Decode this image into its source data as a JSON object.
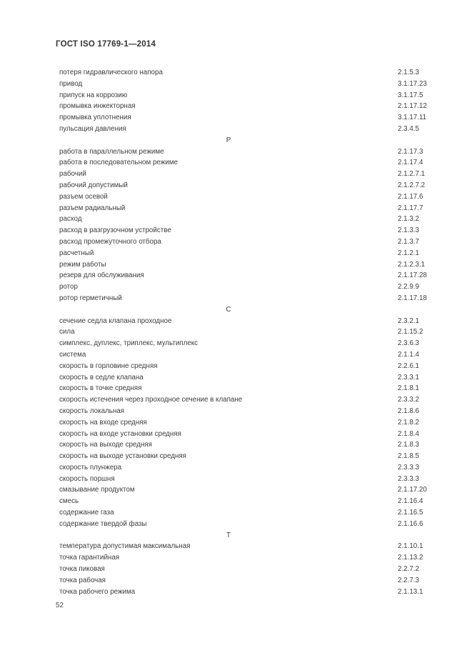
{
  "page": {
    "header_title": "ГОСТ ISO 17769-1—2014",
    "page_number": "52"
  },
  "index": {
    "sections": [
      {
        "letter": "",
        "entries": [
          {
            "term": "потеря гидравлического напора",
            "ref": "2.1.5.3"
          },
          {
            "term": "привод",
            "ref": "3.1.17.23"
          },
          {
            "term": "припуск на коррозию",
            "ref": "3.1.17.5"
          },
          {
            "term": "промывка инжекторная",
            "ref": "2.1.17.12"
          },
          {
            "term": "промывка уплотнения",
            "ref": "3.1.17.11"
          },
          {
            "term": "пульсация давления",
            "ref": "2.3.4.5"
          }
        ]
      },
      {
        "letter": "Р",
        "entries": [
          {
            "term": "работа в параллельном режиме",
            "ref": "2.1.17.3"
          },
          {
            "term": "работа в последовательном режиме",
            "ref": "2.1.17.4"
          },
          {
            "term": "рабочий",
            "ref": "2.1.2.7.1"
          },
          {
            "term": "рабочий допустимый",
            "ref": "2.1.2.7.2"
          },
          {
            "term": "разъем осевой",
            "ref": "2.1.17.6"
          },
          {
            "term": "разъем радиальный",
            "ref": "2.1.17.7"
          },
          {
            "term": "расход",
            "ref": "2.1.3.2"
          },
          {
            "term": "расход в разгрузочном устройстве",
            "ref": "2.1.3.3"
          },
          {
            "term": "расход промежуточного отбора",
            "ref": "2.1.3.7"
          },
          {
            "term": "расчетный",
            "ref": "2.1.2.1"
          },
          {
            "term": "режим работы",
            "ref": "2.1.2.3.1"
          },
          {
            "term": "резерв для обслуживания",
            "ref": "2.1.17.28"
          },
          {
            "term": "ротор",
            "ref": "2.2.9.9"
          },
          {
            "term": "ротор герметичный",
            "ref": "2.1.17.18"
          }
        ]
      },
      {
        "letter": "С",
        "entries": [
          {
            "term": "сечение седла клапана проходное",
            "ref": "2.3.2.1"
          },
          {
            "term": "сила",
            "ref": "2.1.15.2"
          },
          {
            "term": "симплекс, дуплекс, триплекс, мультиплекс",
            "ref": "2.3.6.3"
          },
          {
            "term": "система",
            "ref": "2.1.1.4"
          },
          {
            "term": "скорость в горловине средняя",
            "ref": "2.2.6.1"
          },
          {
            "term": "скорость в седле клапана",
            "ref": "2.3.3.1"
          },
          {
            "term": "скорость в точке средняя",
            "ref": "2.1.8.1"
          },
          {
            "term": "скорость истечения через проходное сечение в клапане",
            "ref": "2.3.3.2"
          },
          {
            "term": "скорость локальная",
            "ref": "2.1.8.6"
          },
          {
            "term": "скорость на входе средняя",
            "ref": "2.1.8.2"
          },
          {
            "term": "скорость на входе установки средняя",
            "ref": "2.1.8.4"
          },
          {
            "term": "скорость на выходе средняя",
            "ref": "2.1.8.3"
          },
          {
            "term": "скорость на выходе установки средняя",
            "ref": "2.1.8.5"
          },
          {
            "term": "скорость плунжера",
            "ref": "2.3.3.3"
          },
          {
            "term": "скорость поршня",
            "ref": "2.3.3.3"
          },
          {
            "term": "смазывание продуктом",
            "ref": "2.1.17.20"
          },
          {
            "term": "смесь",
            "ref": "2.1.16.4"
          },
          {
            "term": "содержание газа",
            "ref": "2.1.16.5"
          },
          {
            "term": "содержание твердой фазы",
            "ref": "2.1.16.6"
          }
        ]
      },
      {
        "letter": "Т",
        "entries": [
          {
            "term": "температура допустимая максимальная",
            "ref": "2.1.10.1"
          },
          {
            "term": "точка гарантийная",
            "ref": "2.1.13.2"
          },
          {
            "term": "точка пиковая",
            "ref": "2.2.7.2"
          },
          {
            "term": "точка рабочая",
            "ref": "2.2.7.3"
          },
          {
            "term": "точка рабочего режима",
            "ref": "2.1.13.1"
          }
        ]
      }
    ]
  }
}
